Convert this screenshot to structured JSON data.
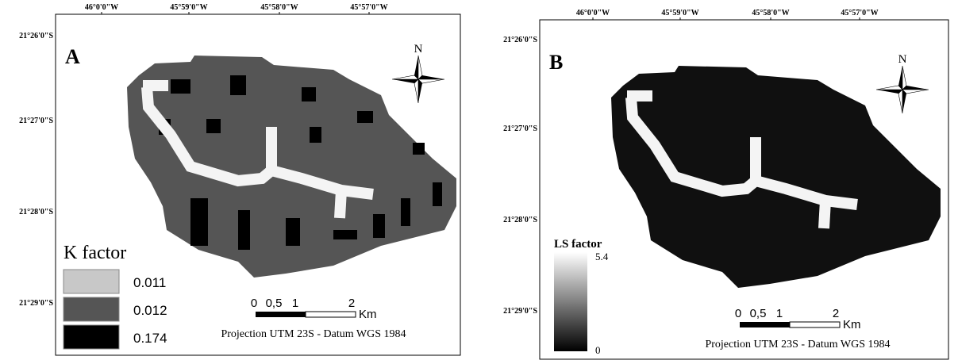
{
  "panels": [
    {
      "label": "A",
      "lon_labels": [
        "46°0'0\"W",
        "45°59'0\"W",
        "45°58'0\"W",
        "45°57'0\"W"
      ],
      "lat_labels": [
        "21°26'0\"S",
        "21°27'0\"S",
        "21°28'0\"S",
        "21°29'0\"S"
      ],
      "north": "N",
      "legend": {
        "title": "K factor",
        "items": [
          {
            "label": "0.011",
            "color": "#c8c8c8"
          },
          {
            "label": "0.012",
            "color": "#555555"
          },
          {
            "label": "0.174",
            "color": "#000000"
          }
        ]
      },
      "scale_bar": {
        "labels": [
          "0",
          "0,5",
          "1",
          "2"
        ],
        "unit": "Km"
      },
      "projection": "Projection UTM 23S - Datum WGS 1984"
    },
    {
      "label": "B",
      "lon_labels": [
        "46°0'0\"W",
        "45°59'0\"W",
        "45°58'0\"W",
        "45°57'0\"W"
      ],
      "lat_labels": [
        "21°26'0\"S",
        "21°27'0\"S",
        "21°28'0\"S",
        "21°29'0\"S"
      ],
      "north": "N",
      "legend": {
        "title": "LS factor",
        "max": "5.4",
        "min": "0"
      },
      "scale_bar": {
        "labels": [
          "0",
          "0,5",
          "1",
          "2"
        ],
        "unit": "Km"
      },
      "projection": "Projection UTM 23S - Datum WGS 1984"
    }
  ]
}
